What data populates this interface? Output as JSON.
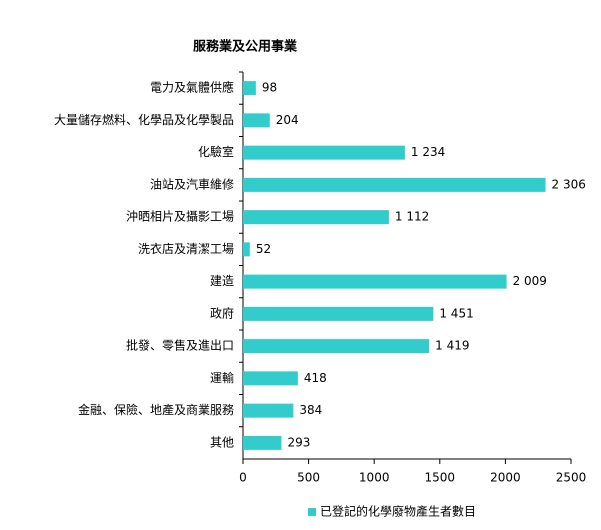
{
  "chart_data": {
    "type": "bar",
    "orientation": "horizontal",
    "title": "服務業及公用事業",
    "categories": [
      "電力及氣體供應",
      "大量儲存燃料、化學品及化學製品",
      "化驗室",
      "油站及汽車維修",
      "沖晒相片及攝影工場",
      "洗衣店及清潔工場",
      "建造",
      "政府",
      "批發、零售及進出口",
      "運輸",
      "金融、保險、地產及商業服務",
      "其他"
    ],
    "series": [
      {
        "name": "已登記的化學廢物產生者數目",
        "color": "#33cccc",
        "values": [
          98,
          204,
          1234,
          2306,
          1112,
          52,
          2009,
          1451,
          1419,
          418,
          384,
          293
        ],
        "value_labels": [
          "98",
          "204",
          "1 234",
          "2 306",
          "1 112",
          "52",
          "2 009",
          "1 451",
          "1 419",
          "418",
          "384",
          "293"
        ]
      }
    ],
    "xlim": [
      0,
      2500
    ],
    "xticks": [
      0,
      500,
      1000,
      1500,
      2000,
      2500
    ],
    "legend": "bottom"
  }
}
